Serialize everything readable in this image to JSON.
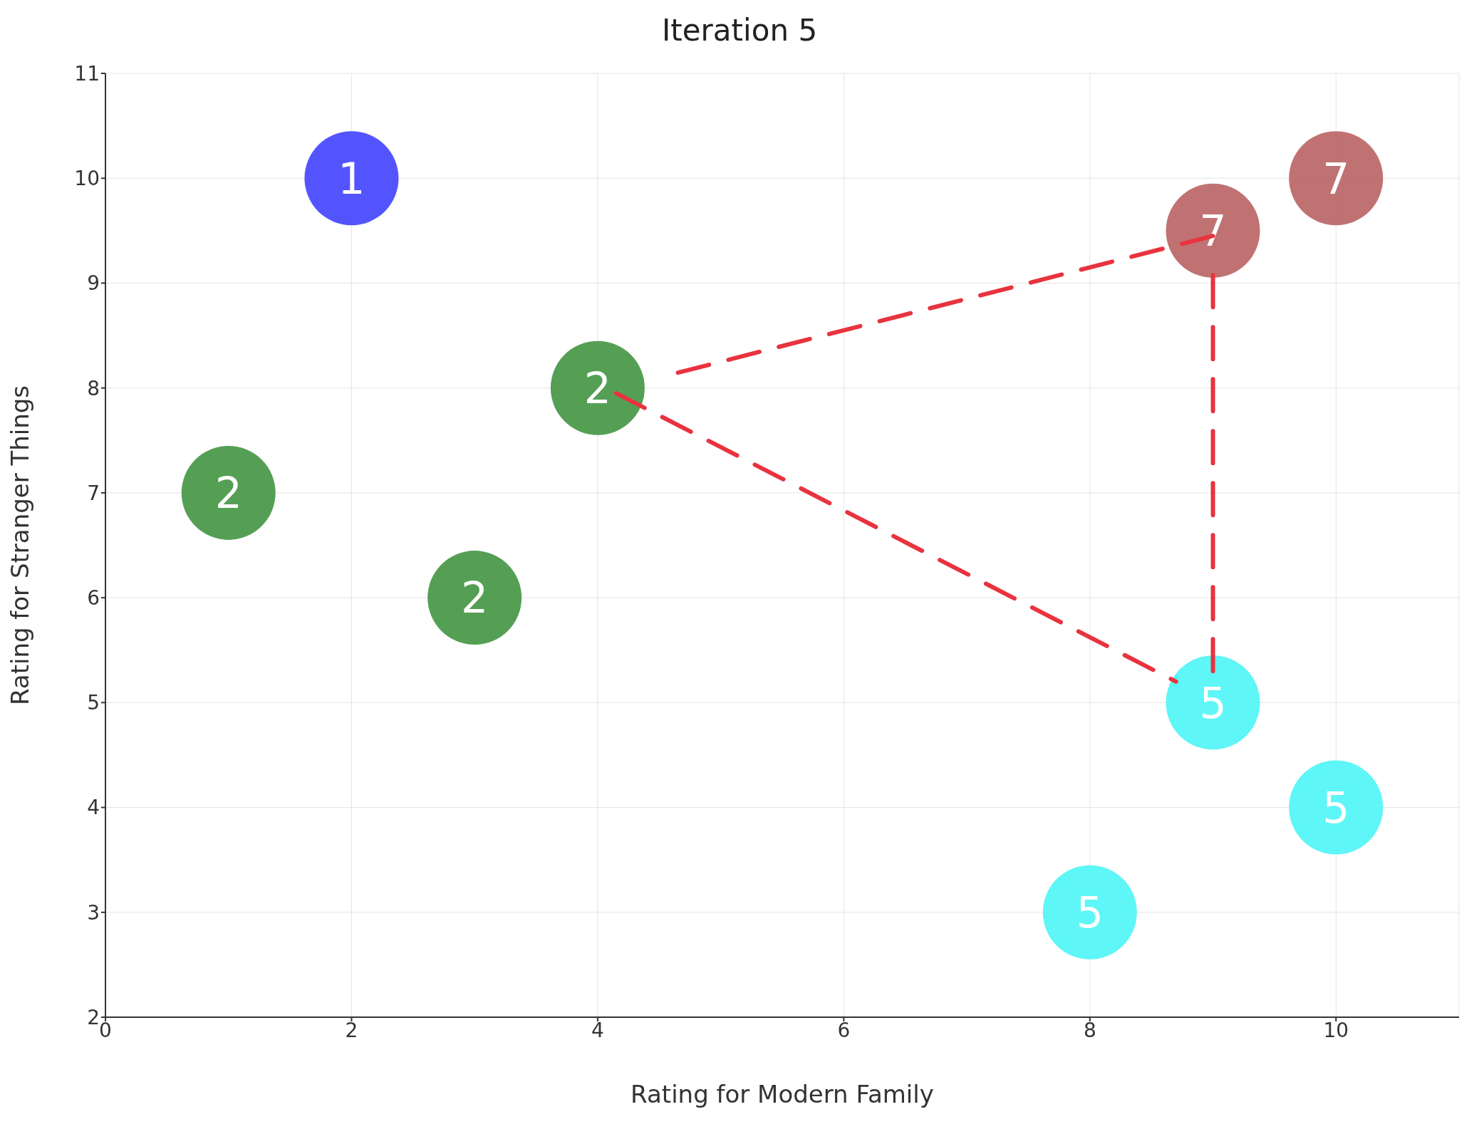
{
  "chart_data": {
    "type": "scatter",
    "title": "Iteration 5",
    "xlabel": "Rating for Modern Family",
    "ylabel": "Rating for Stranger Things",
    "xlim": [
      0,
      11
    ],
    "xticks": [
      0,
      2,
      4,
      6,
      8,
      10
    ],
    "ylim": [
      2,
      11
    ],
    "yticks": [
      2,
      3,
      4,
      5,
      6,
      7,
      8,
      9,
      10,
      11
    ],
    "grid": true,
    "marker": "circle",
    "legend": false,
    "series": [
      {
        "name": "1",
        "color": "#4b4bff",
        "x": [
          2
        ],
        "values": [
          10
        ]
      },
      {
        "name": "2",
        "color": "#4c9a4c",
        "x": [
          1,
          3,
          4
        ],
        "values": [
          7,
          6,
          8
        ]
      },
      {
        "name": "5",
        "color": "#55f5f5",
        "x": [
          9,
          10,
          8
        ],
        "values": [
          5,
          4,
          3
        ]
      },
      {
        "name": "7",
        "color": "#bd6a6a",
        "x": [
          9,
          10
        ],
        "values": [
          9.5,
          10
        ]
      }
    ]
  }
}
